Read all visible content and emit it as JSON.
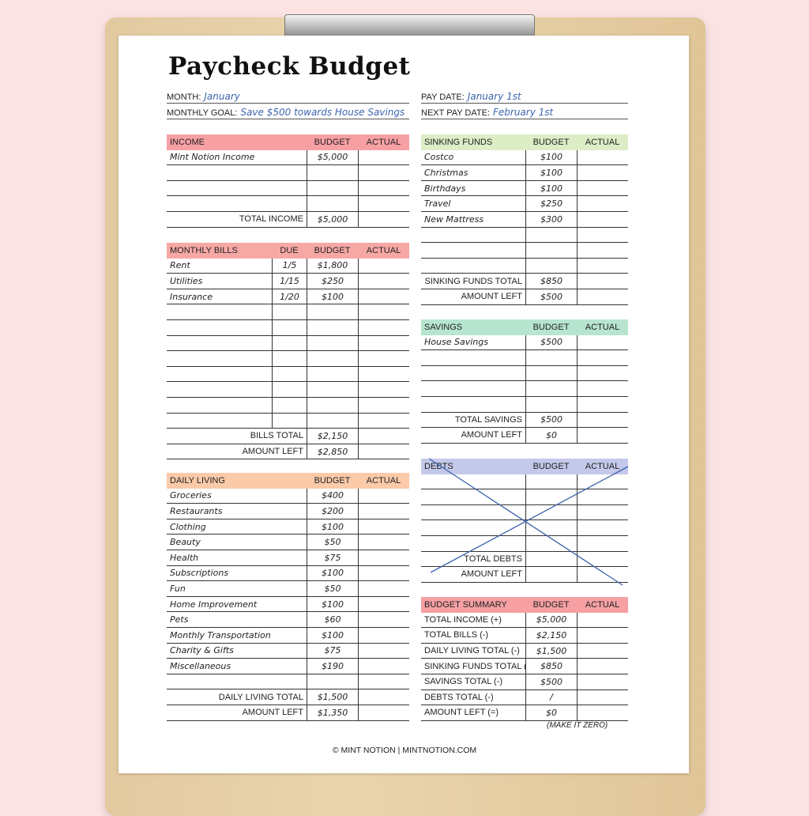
{
  "title": "Paycheck Budget",
  "fields": {
    "month_label": "MONTH:",
    "month": "January",
    "goal_label": "MONTHLY GOAL:",
    "goal": "Save $500 towards House Savings",
    "pay_date_label": "PAY DATE:",
    "pay_date": "January 1st",
    "next_pay_date_label": "NEXT PAY DATE:",
    "next_pay_date": "February 1st"
  },
  "colors": {
    "income": "#f7a0a3",
    "bills": "#f7a8a5",
    "daily": "#fbcaa9",
    "sinking": "#ddedc6",
    "savings": "#b7e5d0",
    "debts": "#c4c8ea",
    "summary": "#f6a0a4",
    "handwriting": "#3d64ad"
  },
  "tables": {
    "income": {
      "headers": [
        "INCOME",
        "BUDGET",
        "ACTUAL"
      ],
      "rows": [
        [
          "Mint Notion Income",
          "$5,000",
          ""
        ],
        [
          "",
          "",
          ""
        ],
        [
          "",
          "",
          ""
        ],
        [
          "",
          "",
          ""
        ]
      ],
      "totals": [
        [
          "TOTAL INCOME",
          "$5,000",
          ""
        ]
      ]
    },
    "bills": {
      "headers": [
        "MONTHLY BILLS",
        "DUE",
        "BUDGET",
        "ACTUAL"
      ],
      "rows": [
        [
          "Rent",
          "1/5",
          "$1,800",
          ""
        ],
        [
          "Utilities",
          "1/15",
          "$250",
          ""
        ],
        [
          "Insurance",
          "1/20",
          "$100",
          ""
        ],
        [
          "",
          "",
          "",
          ""
        ],
        [
          "",
          "",
          "",
          ""
        ],
        [
          "",
          "",
          "",
          ""
        ],
        [
          "",
          "",
          "",
          ""
        ],
        [
          "",
          "",
          "",
          ""
        ],
        [
          "",
          "",
          "",
          ""
        ],
        [
          "",
          "",
          "",
          ""
        ],
        [
          "",
          "",
          "",
          ""
        ]
      ],
      "totals": [
        [
          "BILLS TOTAL",
          "$2,150",
          ""
        ],
        [
          "AMOUNT LEFT",
          "$2,850",
          ""
        ]
      ]
    },
    "daily": {
      "headers": [
        "DAILY LIVING",
        "BUDGET",
        "ACTUAL"
      ],
      "rows": [
        [
          "Groceries",
          "$400",
          ""
        ],
        [
          "Restaurants",
          "$200",
          ""
        ],
        [
          "Clothing",
          "$100",
          ""
        ],
        [
          "Beauty",
          "$50",
          ""
        ],
        [
          "Health",
          "$75",
          ""
        ],
        [
          "Subscriptions",
          "$100",
          ""
        ],
        [
          "Fun",
          "$50",
          ""
        ],
        [
          "Home Improvement",
          "$100",
          ""
        ],
        [
          "Pets",
          "$60",
          ""
        ],
        [
          "Monthly Transportation",
          "$100",
          ""
        ],
        [
          "Charity & Gifts",
          "$75",
          ""
        ],
        [
          "Miscellaneous",
          "$190",
          ""
        ],
        [
          "",
          "",
          ""
        ]
      ],
      "totals": [
        [
          "DAILY LIVING TOTAL",
          "$1,500",
          ""
        ],
        [
          "AMOUNT LEFT",
          "$1,350",
          ""
        ]
      ]
    },
    "sinking": {
      "headers": [
        "SINKING FUNDS",
        "BUDGET",
        "ACTUAL"
      ],
      "rows": [
        [
          "Costco",
          "$100",
          ""
        ],
        [
          "Christmas",
          "$100",
          ""
        ],
        [
          "Birthdays",
          "$100",
          ""
        ],
        [
          "Travel",
          "$250",
          ""
        ],
        [
          "New Mattress",
          "$300",
          ""
        ],
        [
          "",
          "",
          ""
        ],
        [
          "",
          "",
          ""
        ],
        [
          "",
          "",
          ""
        ]
      ],
      "totals": [
        [
          "SINKING FUNDS TOTAL",
          "$850",
          ""
        ],
        [
          "AMOUNT LEFT",
          "$500",
          ""
        ]
      ]
    },
    "savings": {
      "headers": [
        "SAVINGS",
        "BUDGET",
        "ACTUAL"
      ],
      "rows": [
        [
          "House Savings",
          "$500",
          ""
        ],
        [
          "",
          "",
          ""
        ],
        [
          "",
          "",
          ""
        ],
        [
          "",
          "",
          ""
        ],
        [
          "",
          "",
          ""
        ]
      ],
      "totals": [
        [
          "TOTAL SAVINGS",
          "$500",
          ""
        ],
        [
          "AMOUNT LEFT",
          "$0",
          ""
        ]
      ]
    },
    "debts": {
      "headers": [
        "DEBTS",
        "BUDGET",
        "ACTUAL"
      ],
      "rows": [
        [
          "",
          "",
          ""
        ],
        [
          "",
          "",
          ""
        ],
        [
          "",
          "",
          ""
        ],
        [
          "",
          "",
          ""
        ],
        [
          "",
          "",
          ""
        ]
      ],
      "totals": [
        [
          "TOTAL DEBTS",
          "",
          ""
        ],
        [
          "AMOUNT LEFT",
          "",
          ""
        ]
      ],
      "crossed_out": true
    },
    "summary": {
      "headers": [
        "BUDGET SUMMARY",
        "BUDGET",
        "ACTUAL"
      ],
      "rows": [
        [
          "TOTAL INCOME (+)",
          "$5,000",
          ""
        ],
        [
          "TOTAL BILLS (-)",
          "$2,150",
          ""
        ],
        [
          "DAILY LIVING TOTAL (-)",
          "$1,500",
          ""
        ],
        [
          "SINKING FUNDS TOTAL (-)",
          "$850",
          ""
        ],
        [
          "SAVINGS TOTAL (-)",
          "$500",
          ""
        ],
        [
          "DEBTS TOTAL (-)",
          "/",
          ""
        ],
        [
          "AMOUNT LEFT (=)",
          "$0",
          ""
        ]
      ],
      "totals": []
    }
  },
  "make_it_zero": "(MAKE IT ZERO)",
  "footer": "© MINT NOTION | MINTNOTION.COM"
}
